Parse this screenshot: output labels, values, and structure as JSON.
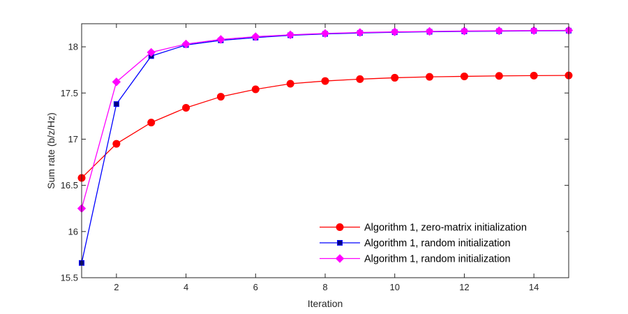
{
  "chart_data": {
    "type": "line",
    "xlabel": "Iteration",
    "ylabel": "Sum rate (b/z/Hz)",
    "xlim": [
      1,
      15
    ],
    "ylim": [
      15.5,
      18.25
    ],
    "xticks": [
      2,
      4,
      6,
      8,
      10,
      12,
      14
    ],
    "xtick_labels": [
      "2",
      "4",
      "6",
      "8",
      "10",
      "12",
      "14"
    ],
    "yticks": [
      15.5,
      16,
      16.5,
      17,
      17.5,
      18
    ],
    "ytick_labels": [
      "15.5",
      "16",
      "16.5",
      "17",
      "17.5",
      "18"
    ],
    "grid": false,
    "legend_position": "bottom-right",
    "x": [
      1,
      2,
      3,
      4,
      5,
      6,
      7,
      8,
      9,
      10,
      11,
      12,
      13,
      14,
      15
    ],
    "series": [
      {
        "name": "Algorithm 1, zero-matrix initialization",
        "color": "#ff0000",
        "marker": "circle",
        "values": [
          16.58,
          16.95,
          17.18,
          17.34,
          17.46,
          17.54,
          17.6,
          17.63,
          17.65,
          17.665,
          17.675,
          17.68,
          17.685,
          17.688,
          17.69
        ]
      },
      {
        "name": "Algorithm 1, random initialization",
        "color": "#0000ff",
        "marker": "square",
        "values": [
          15.66,
          17.38,
          17.9,
          18.02,
          18.07,
          18.1,
          18.125,
          18.14,
          18.15,
          18.158,
          18.163,
          18.167,
          18.17,
          18.173,
          18.175
        ]
      },
      {
        "name": "Algorithm 1, random initialization",
        "color": "#ff00ff",
        "marker": "diamond",
        "values": [
          16.25,
          17.62,
          17.94,
          18.03,
          18.08,
          18.11,
          18.13,
          18.145,
          18.155,
          18.162,
          18.167,
          18.171,
          18.174,
          18.176,
          18.178
        ]
      }
    ]
  }
}
